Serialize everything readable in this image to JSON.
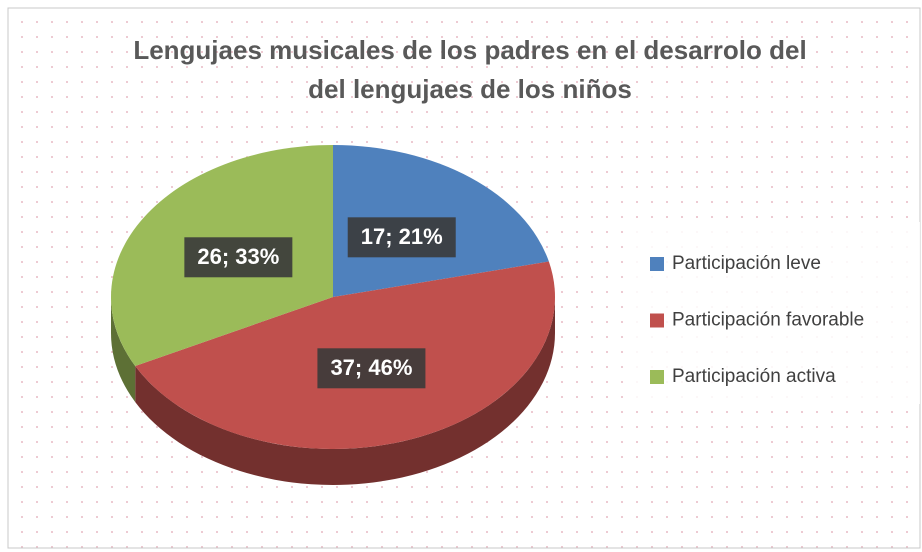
{
  "chart_data": {
    "type": "pie",
    "title": [
      "Lengujaes musicales de los padres en el desarrolo del",
      "del lengujaes de los niños"
    ],
    "categories": [
      "Participación leve",
      "Participación favorable",
      "Participación activa"
    ],
    "values": [
      17,
      37,
      26
    ],
    "value_labels": [
      "17; 21%",
      "37; 46%",
      "26; 33%"
    ],
    "colors": [
      "#4f81bd",
      "#c0504d",
      "#9bbb59"
    ],
    "legend": "right"
  }
}
